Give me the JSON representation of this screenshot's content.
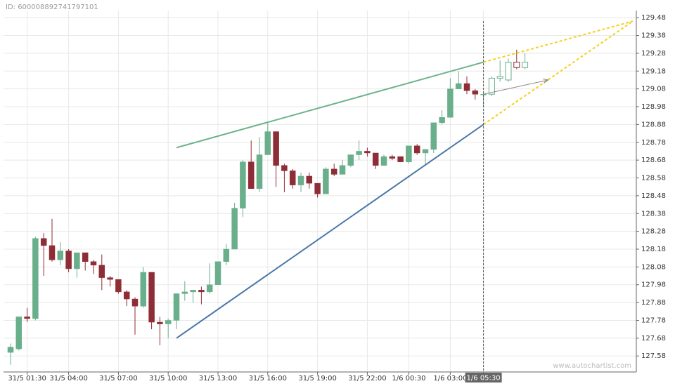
{
  "header": {
    "id_label": "ID: 600008892741797101",
    "watermark": "www.autochartist.com"
  },
  "chart_data": {
    "type": "candlestick",
    "categories": [
      null,
      null,
      "31/5 01:30",
      null,
      null,
      null,
      null,
      "31/5 04:00",
      null,
      null,
      null,
      null,
      null,
      "31/5 07:00",
      null,
      null,
      null,
      null,
      null,
      "31/5 10:00",
      null,
      null,
      null,
      null,
      null,
      "31/5 13:00",
      null,
      null,
      null,
      null,
      null,
      "31/5 16:00",
      null,
      null,
      null,
      null,
      null,
      "31/5 19:00",
      null,
      null,
      null,
      null,
      null,
      "31/5 22:00",
      null,
      null,
      null,
      null,
      "1/6 00:30",
      null,
      null,
      null,
      null,
      "1/6 03:00",
      null,
      null,
      null,
      "1/6 05:30",
      null,
      null,
      null,
      null,
      null
    ],
    "open": [
      127.6,
      127.62,
      127.8,
      127.79,
      128.24,
      128.2,
      128.12,
      128.17,
      128.07,
      128.16,
      128.11,
      128.09,
      128.02,
      128.01,
      127.94,
      127.9,
      127.86,
      128.05,
      127.77,
      127.76,
      127.78,
      127.93,
      127.94,
      127.95,
      127.94,
      127.98,
      128.11,
      128.18,
      128.41,
      128.67,
      128.52,
      128.71,
      128.84,
      128.65,
      128.62,
      128.54,
      128.59,
      128.55,
      128.49,
      128.63,
      128.6,
      128.65,
      128.71,
      128.73,
      128.72,
      128.65,
      128.7,
      128.7,
      128.67,
      128.76,
      128.72,
      128.74,
      128.89,
      128.92,
      129.08,
      129.11,
      129.07,
      129.05,
      129.05,
      129.14,
      129.13,
      129.23,
      129.2
    ],
    "high": [
      127.65,
      127.8,
      127.85,
      128.25,
      128.27,
      128.35,
      128.22,
      128.18,
      128.16,
      128.16,
      128.12,
      128.15,
      128.03,
      128.01,
      127.95,
      127.91,
      128.08,
      128.05,
      127.8,
      127.79,
      127.93,
      128.0,
      127.95,
      127.97,
      128.1,
      128.11,
      128.21,
      128.44,
      128.68,
      128.79,
      128.81,
      128.89,
      128.84,
      128.66,
      128.63,
      128.61,
      128.61,
      128.55,
      128.64,
      128.66,
      128.68,
      128.71,
      128.79,
      128.75,
      128.72,
      128.71,
      128.71,
      128.7,
      128.76,
      128.77,
      128.74,
      128.89,
      128.96,
      129.14,
      129.18,
      129.15,
      129.08,
      129.06,
      129.15,
      129.24,
      129.25,
      129.3,
      129.28
    ],
    "low": [
      127.53,
      127.61,
      127.77,
      127.78,
      128.03,
      128.11,
      128.09,
      128.05,
      128.02,
      128.06,
      128.04,
      127.95,
      127.97,
      127.93,
      127.86,
      127.7,
      127.85,
      127.73,
      127.64,
      127.68,
      127.73,
      127.89,
      127.88,
      127.87,
      127.93,
      127.98,
      128.09,
      128.18,
      128.36,
      128.52,
      128.5,
      128.71,
      128.53,
      128.5,
      128.52,
      128.5,
      128.52,
      128.47,
      128.49,
      128.59,
      128.6,
      128.64,
      128.68,
      128.7,
      128.63,
      128.65,
      128.68,
      128.67,
      128.66,
      128.71,
      128.65,
      128.72,
      128.88,
      128.92,
      129.08,
      129.05,
      129.02,
      128.98,
      129.04,
      129.12,
      129.12,
      129.19,
      129.19
    ],
    "close": [
      127.63,
      127.8,
      127.79,
      128.24,
      128.2,
      128.12,
      128.17,
      128.07,
      128.16,
      128.11,
      128.09,
      128.02,
      128.01,
      127.94,
      127.9,
      127.86,
      128.05,
      127.77,
      127.76,
      127.78,
      127.93,
      127.94,
      127.95,
      127.94,
      127.98,
      128.11,
      128.18,
      128.41,
      128.67,
      128.52,
      128.71,
      128.84,
      128.65,
      128.62,
      128.54,
      128.59,
      128.55,
      128.49,
      128.63,
      128.6,
      128.65,
      128.71,
      128.73,
      128.72,
      128.65,
      128.7,
      128.69,
      128.67,
      128.76,
      128.72,
      128.74,
      128.89,
      128.92,
      129.08,
      129.11,
      129.07,
      129.05,
      129.05,
      129.14,
      129.15,
      129.23,
      129.2,
      129.23
    ],
    "up_color": "#6aaf8b",
    "down_color": "#8f2d36",
    "highlight_category": 57,
    "ylim": [
      127.51,
      129.52
    ],
    "yticks": [
      127.58,
      127.68,
      127.78,
      127.88,
      127.98,
      {
        "value": 128.08,
        "label": "128.08"
      },
      128.18,
      128.28,
      128.38,
      128.48,
      128.58,
      128.68,
      128.78,
      128.88,
      128.98,
      129.08,
      129.18,
      129.28,
      129.38,
      129.48
    ],
    "grid": true,
    "lines": [
      {
        "color": "#6db38a",
        "style": "solid",
        "x": [
          20,
          57
        ],
        "y": [
          128.75,
          129.23
        ]
      },
      {
        "color": "#4a78a8",
        "style": "solid",
        "x": [
          20,
          57
        ],
        "y": [
          127.68,
          128.88
        ]
      },
      {
        "color": "#f5d020",
        "style": "dashed",
        "x": [
          57,
          75
        ],
        "y": [
          129.23,
          129.46
        ]
      },
      {
        "color": "#f5d020",
        "style": "dashed",
        "x": [
          57,
          75
        ],
        "y": [
          128.88,
          129.46
        ]
      },
      {
        "color": "#888888",
        "style": "arrow",
        "x": [
          57,
          64.8
        ],
        "y": [
          129.05,
          129.13
        ]
      }
    ]
  }
}
